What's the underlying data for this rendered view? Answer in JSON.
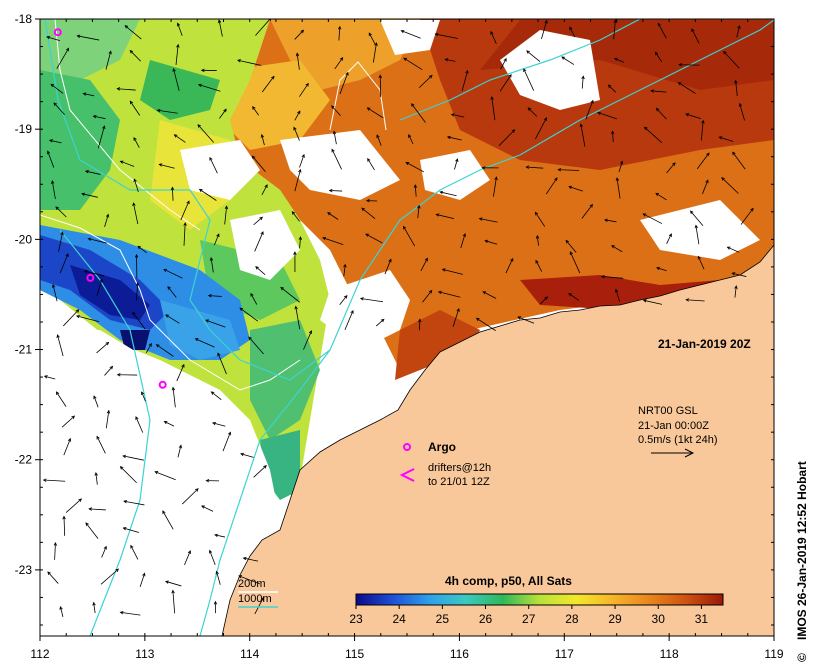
{
  "map": {
    "lon_range": [
      112,
      119
    ],
    "lat_range": [
      -23.6,
      -18
    ],
    "x_ticks": [
      "112",
      "113",
      "114",
      "115",
      "116",
      "117",
      "118",
      "119"
    ],
    "y_ticks": [
      "-18",
      "-19",
      "-20",
      "-21",
      "-22",
      "-23"
    ]
  },
  "labels": {
    "date": "21-Jan-2019 20Z",
    "current_source": "NRT00 GSL",
    "current_time": "21-Jan 00:00Z",
    "current_scale": "0.5m/s (1kt 24h)",
    "argo": "Argo",
    "drifters_line1": "drifters@12h",
    "drifters_line2": "to 21/01 12Z",
    "iso200": "200m",
    "iso1000": "1000m",
    "colorbar_title": "4h comp, p50, All Sats",
    "credit": "IMOS 26-Jan-2019 12:52 Hobart",
    "copyright": "©"
  },
  "colorbar": {
    "ticks": [
      "23",
      "24",
      "25",
      "26",
      "27",
      "28",
      "29",
      "30",
      "31"
    ],
    "range": [
      23,
      31.5
    ]
  },
  "colors": {
    "land": "#f9c89a",
    "argo": "#ff00ff",
    "isobath_200": "#ffffff",
    "isobath_1000": "#3cd3d3"
  },
  "argo_floats": [
    {
      "lon": 112.17,
      "lat": -18.12
    },
    {
      "lon": 112.48,
      "lat": -20.35
    },
    {
      "lon": 113.17,
      "lat": -21.32
    }
  ]
}
